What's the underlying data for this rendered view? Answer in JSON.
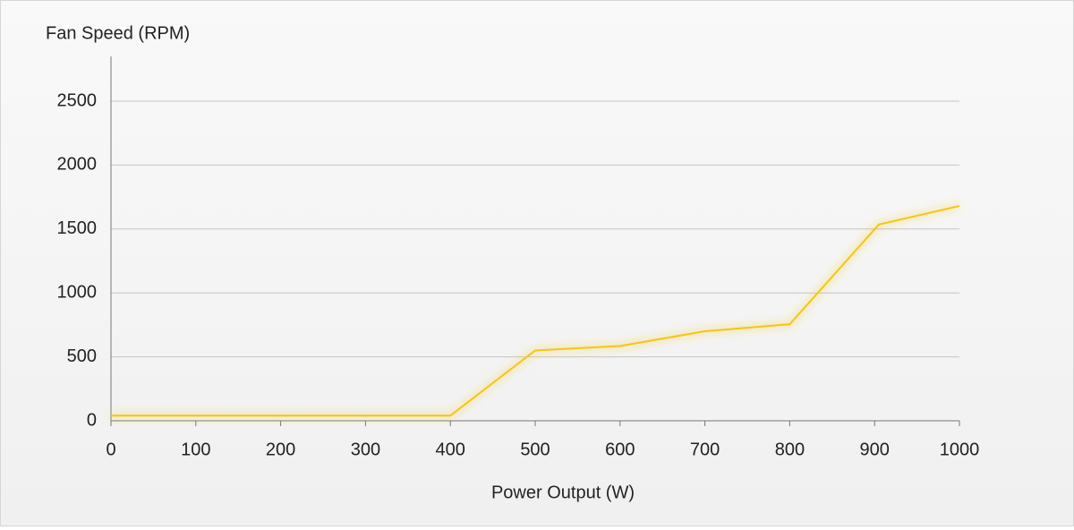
{
  "chart_data": {
    "type": "line",
    "y_label": "Fan Speed (RPM)",
    "x_label": "Power Output (W)",
    "x": [
      0,
      400,
      500,
      600,
      700,
      800,
      905,
      1000
    ],
    "series": [
      {
        "name": "Fan Speed",
        "color": "#f5c518",
        "values": [
          40,
          40,
          550,
          585,
          700,
          755,
          1535,
          1680
        ]
      }
    ],
    "xlim": [
      0,
      1000
    ],
    "xticks": [
      0,
      100,
      200,
      300,
      400,
      500,
      600,
      700,
      800,
      900,
      1000
    ],
    "ylim": [
      0,
      2850
    ],
    "yticks": [
      0,
      500,
      1000,
      1500,
      2000,
      2500
    ],
    "grid": true
  }
}
